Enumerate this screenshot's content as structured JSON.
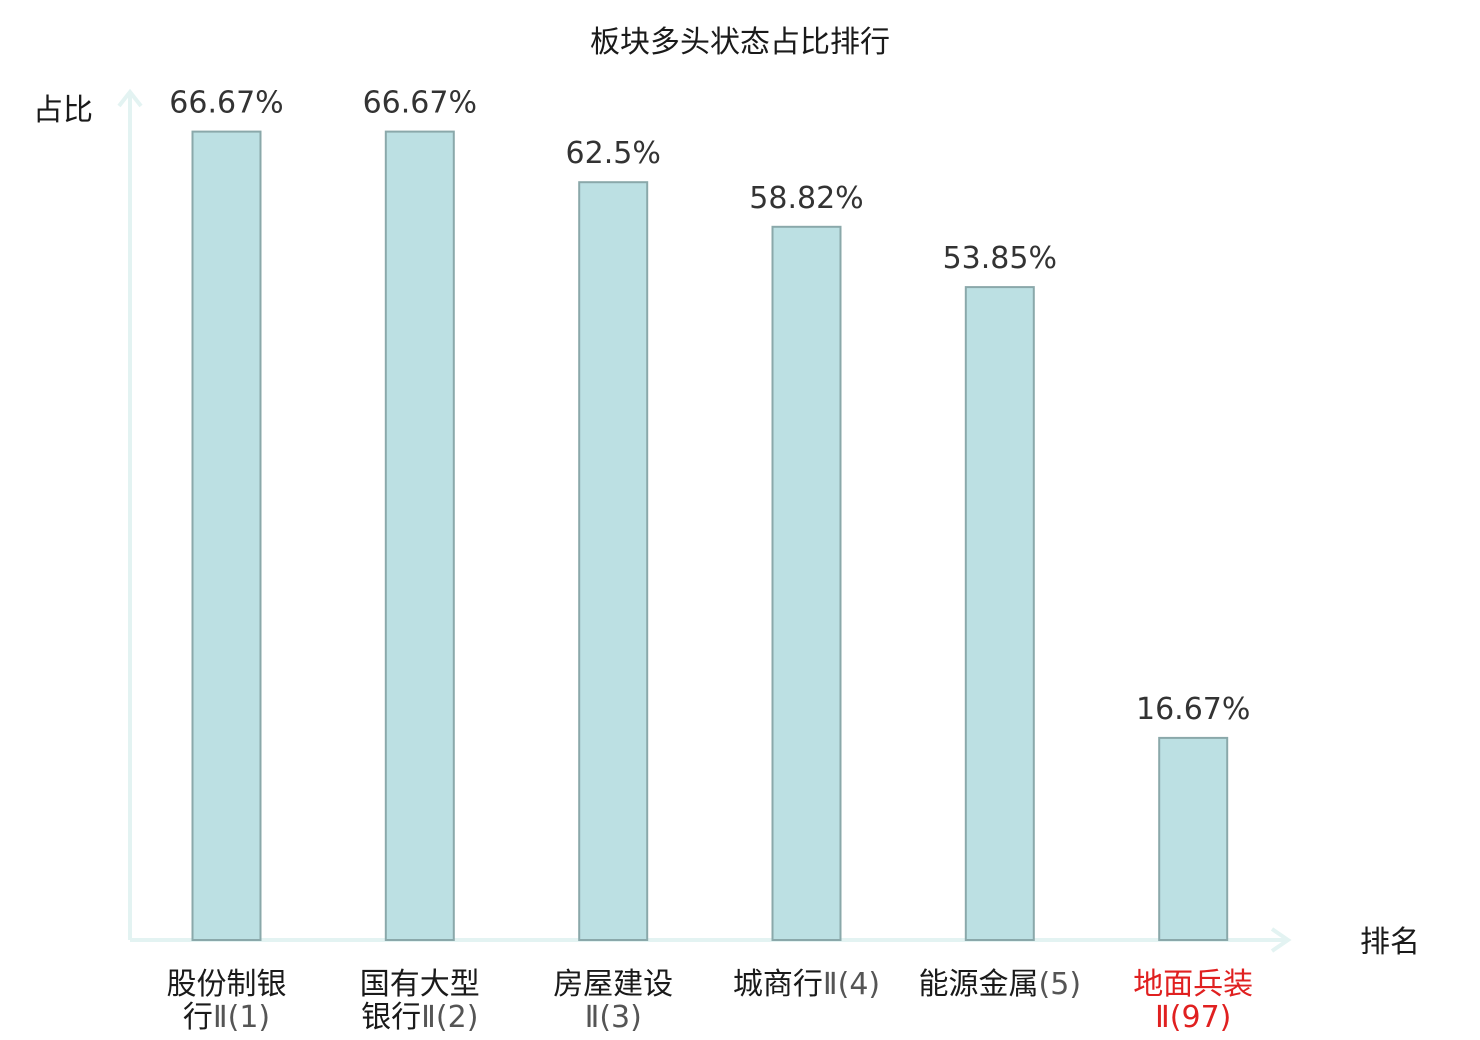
{
  "chart_data": {
    "type": "bar",
    "title": "板块多头状态占比排行",
    "ylabel": "占比",
    "xlabel": "排名",
    "ylim": [
      0,
      75
    ],
    "categories": [
      {
        "name": "股份制银行",
        "rank": "Ⅱ(1)",
        "highlight": false
      },
      {
        "name": "国有大型银行",
        "rank": "Ⅱ(2)",
        "highlight": false
      },
      {
        "name": "房屋建设",
        "rank": "Ⅱ(3)",
        "highlight": false
      },
      {
        "name": "城商行",
        "rank": "Ⅱ(4)",
        "highlight": false
      },
      {
        "name": "能源金属",
        "rank": "(5)",
        "highlight": false
      },
      {
        "name": "地面兵装",
        "rank": "Ⅱ(97)",
        "highlight": true
      }
    ],
    "values": [
      66.67,
      66.67,
      62.5,
      58.82,
      53.85,
      16.67
    ],
    "value_labels": [
      "66.67%",
      "66.67%",
      "62.5%",
      "58.82%",
      "53.85%",
      "16.67%"
    ],
    "grid": false,
    "colors": {
      "bar_fill": "#bce0e3",
      "bar_stroke": "#8aa8aa",
      "axis": "#e3f3f2",
      "label_text": "#1a1a1a",
      "rank_text": "#555555",
      "highlight_text": "#e02020"
    }
  }
}
